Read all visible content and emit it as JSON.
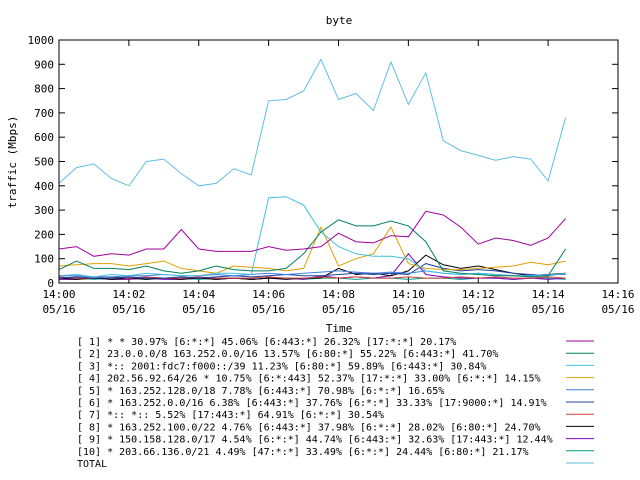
{
  "chart_data": {
    "type": "line",
    "title": "byte",
    "xlabel": "Time",
    "ylabel": "traffic (Mbps)",
    "ylim": [
      0,
      1000
    ],
    "yticks": [
      0,
      100,
      200,
      300,
      400,
      500,
      600,
      700,
      800,
      900,
      1000
    ],
    "xlim": [
      "14:00",
      "14:16"
    ],
    "xticks": [
      {
        "time": "14:00",
        "date": "05/16"
      },
      {
        "time": "14:02",
        "date": "05/16"
      },
      {
        "time": "14:04",
        "date": "05/16"
      },
      {
        "time": "14:06",
        "date": "05/16"
      },
      {
        "time": "14:08",
        "date": "05/16"
      },
      {
        "time": "14:10",
        "date": "05/16"
      },
      {
        "time": "14:12",
        "date": "05/16"
      },
      {
        "time": "14:14",
        "date": "05/16"
      },
      {
        "time": "14:16",
        "date": "05/16"
      }
    ],
    "grid": false,
    "legend_placement": "bottom",
    "x_minutes": [
      0,
      0.5,
      1,
      1.5,
      2,
      2.5,
      3,
      3.5,
      4,
      4.5,
      5,
      5.5,
      6,
      6.5,
      7,
      7.5,
      8,
      8.5,
      9,
      9.5,
      10,
      10.5,
      11,
      11.5,
      12,
      12.5,
      13,
      13.5,
      14,
      14.5
    ],
    "series": [
      {
        "name": "[ 1] * * 30.97% [6:*:*] 45.06% [6:443:*] 26.32% [17:*:*] 20.17%",
        "color": "#a000a0",
        "values": [
          140,
          150,
          110,
          120,
          115,
          140,
          140,
          220,
          140,
          130,
          130,
          130,
          150,
          135,
          140,
          150,
          205,
          170,
          165,
          195,
          190,
          295,
          280,
          230,
          160,
          185,
          175,
          155,
          185,
          265
        ]
      },
      {
        "name": "[ 2] 23.0.0.0/8 163.252.0.0/16 13.57% [6:80:*] 55.22% [6:443:*] 41.70%",
        "color": "#008060",
        "values": [
          55,
          90,
          60,
          60,
          55,
          70,
          50,
          40,
          50,
          70,
          55,
          50,
          50,
          60,
          120,
          210,
          260,
          235,
          235,
          255,
          235,
          170,
          50,
          40,
          35,
          30,
          30,
          25,
          30,
          140
        ]
      },
      {
        "name": "[ 3] *:: 2001:fdc7:f000::/39 11.23% [6:80:*] 59.89% [6:443:*] 30.84%",
        "color": "#40c0e0",
        "values": [
          30,
          35,
          25,
          35,
          30,
          40,
          35,
          30,
          30,
          40,
          40,
          35,
          350,
          355,
          320,
          210,
          150,
          120,
          110,
          110,
          100,
          50,
          40,
          35,
          40,
          35,
          30,
          30,
          30,
          40
        ]
      },
      {
        "name": "[ 4] 202.56.92.64/26 * 10.75% [6:*:443] 52.37% [17:*:*] 33.00% [6:*:*] 14.15%",
        "color": "#e0a000",
        "values": [
          70,
          75,
          80,
          80,
          70,
          80,
          90,
          60,
          50,
          40,
          70,
          65,
          60,
          50,
          60,
          230,
          70,
          100,
          120,
          230,
          80,
          60,
          55,
          55,
          60,
          65,
          70,
          85,
          75,
          90
        ]
      },
      {
        "name": "[ 5] * 163.252.128.0/18 7.78% [6:443:*] 70.98% [6:*:*] 16.65%",
        "color": "#4080e0",
        "values": [
          30,
          30,
          25,
          25,
          30,
          30,
          35,
          30,
          30,
          35,
          30,
          35,
          40,
          35,
          40,
          45,
          50,
          45,
          40,
          45,
          40,
          50,
          40,
          35,
          40,
          35,
          30,
          30,
          35,
          35
        ]
      },
      {
        "name": "[ 6] * 163.252.0.0/16 6.38% [6:443:*] 37.76% [6:*:*] 33.33% [17:9000:*] 14.91%",
        "color": "#2040a0",
        "values": [
          20,
          25,
          20,
          20,
          25,
          20,
          20,
          25,
          20,
          25,
          30,
          25,
          30,
          35,
          30,
          30,
          35,
          40,
          35,
          40,
          35,
          80,
          60,
          50,
          55,
          50,
          40,
          35,
          30,
          40
        ]
      },
      {
        "name": "[ 7] *:: *:: 5.52% [17:443:*] 64.91% [6:*:*] 30.54%",
        "color": "#d04040",
        "values": [
          25,
          20,
          20,
          25,
          20,
          25,
          20,
          20,
          25,
          20,
          20,
          20,
          25,
          20,
          20,
          25,
          20,
          25,
          20,
          20,
          25,
          20,
          20,
          25,
          20,
          25,
          20,
          20,
          25,
          20
        ]
      },
      {
        "name": "[ 8] * 163.252.100.0/22 4.76% [6:443:*] 37.98% [6:*:*] 28.02% [6:80:*] 24.70%",
        "color": "#000000",
        "values": [
          20,
          15,
          20,
          15,
          20,
          15,
          20,
          15,
          20,
          15,
          20,
          15,
          20,
          15,
          20,
          20,
          60,
          35,
          40,
          30,
          50,
          115,
          75,
          60,
          70,
          55,
          40,
          30,
          35,
          40
        ]
      },
      {
        "name": "[ 9] * 150.158.128.0/17 4.54% [6:*:*] 44.74% [6:443:*] 32.63% [17:443:*] 12.44%",
        "color": "#8000c0",
        "values": [
          15,
          15,
          20,
          15,
          15,
          20,
          15,
          15,
          20,
          15,
          20,
          15,
          20,
          20,
          15,
          30,
          20,
          25,
          20,
          30,
          120,
          35,
          25,
          20,
          20,
          20,
          15,
          20,
          15,
          20
        ]
      },
      {
        "name": "[10] * 203.66.136.0/21 4.49% [47:*:*] 33.49% [6:*:*] 24.44% [6:80:*] 21.17%",
        "color": "#00a080",
        "values": [
          20,
          20,
          15,
          20,
          20,
          15,
          20,
          20,
          15,
          20,
          20,
          15,
          20,
          20,
          15,
          20,
          20,
          15,
          20,
          20,
          15,
          20,
          20,
          15,
          20,
          20,
          15,
          20,
          20,
          15
        ]
      },
      {
        "name": "TOTAL",
        "color": "#60c0e0",
        "values": [
          410,
          475,
          490,
          430,
          400,
          500,
          510,
          450,
          400,
          410,
          470,
          445,
          750,
          755,
          790,
          920,
          755,
          780,
          710,
          910,
          735,
          865,
          585,
          545,
          525,
          505,
          520,
          510,
          420,
          680
        ]
      }
    ]
  }
}
